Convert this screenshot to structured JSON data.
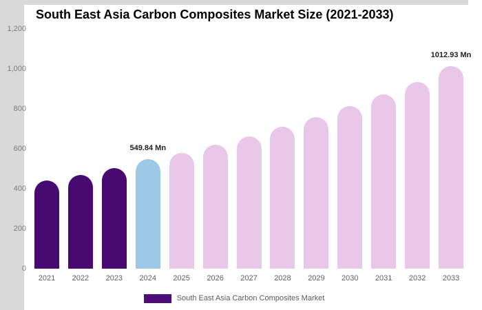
{
  "chart_data": {
    "type": "bar",
    "title": "South East Asia Carbon Composites Market Size (2021-2033)",
    "categories": [
      "2021",
      "2022",
      "2023",
      "2024",
      "2025",
      "2026",
      "2027",
      "2028",
      "2029",
      "2030",
      "2031",
      "2032",
      "2033"
    ],
    "series": [
      {
        "name": "South East Asia Carbon Composites Market",
        "values": [
          440,
          470,
          505,
          549.84,
          578,
          620,
          662,
          710,
          758,
          815,
          872,
          935,
          1012.93
        ]
      }
    ],
    "point_colors": [
      "#470a71",
      "#470a71",
      "#470a71",
      "#9ec9e6",
      "#e9c7e9",
      "#e9c7e9",
      "#e9c7e9",
      "#e9c7e9",
      "#e9c7e9",
      "#e9c7e9",
      "#e9c7e9",
      "#e9c7e9",
      "#e9c7e9"
    ],
    "data_labels": [
      {
        "index": 3,
        "text": "549.84 Mn"
      },
      {
        "index": 12,
        "text": "1012.93 Mn"
      }
    ],
    "xlabel": "",
    "ylabel": "",
    "ylim": [
      0,
      1200
    ],
    "y_ticks": [
      "0",
      "200",
      "400",
      "600",
      "800",
      "1,000",
      "1,200"
    ],
    "y_tick_values": [
      0,
      200,
      400,
      600,
      800,
      1000,
      1200
    ],
    "grid": false,
    "legend_position": "bottom",
    "bar_shape": "rounded-top"
  },
  "legend": {
    "label": "South East Asia Carbon Composites Market",
    "swatch_color": "#4b0e78"
  },
  "colors": {
    "bar_historical": "#470a71",
    "bar_highlight": "#9ec9e6",
    "bar_forecast": "#e9c7e9",
    "page_margin": "#d9d9d9",
    "title_text": "#000000",
    "axis_text": "#7d7d7d",
    "data_label_text": "#1f1f1f"
  }
}
